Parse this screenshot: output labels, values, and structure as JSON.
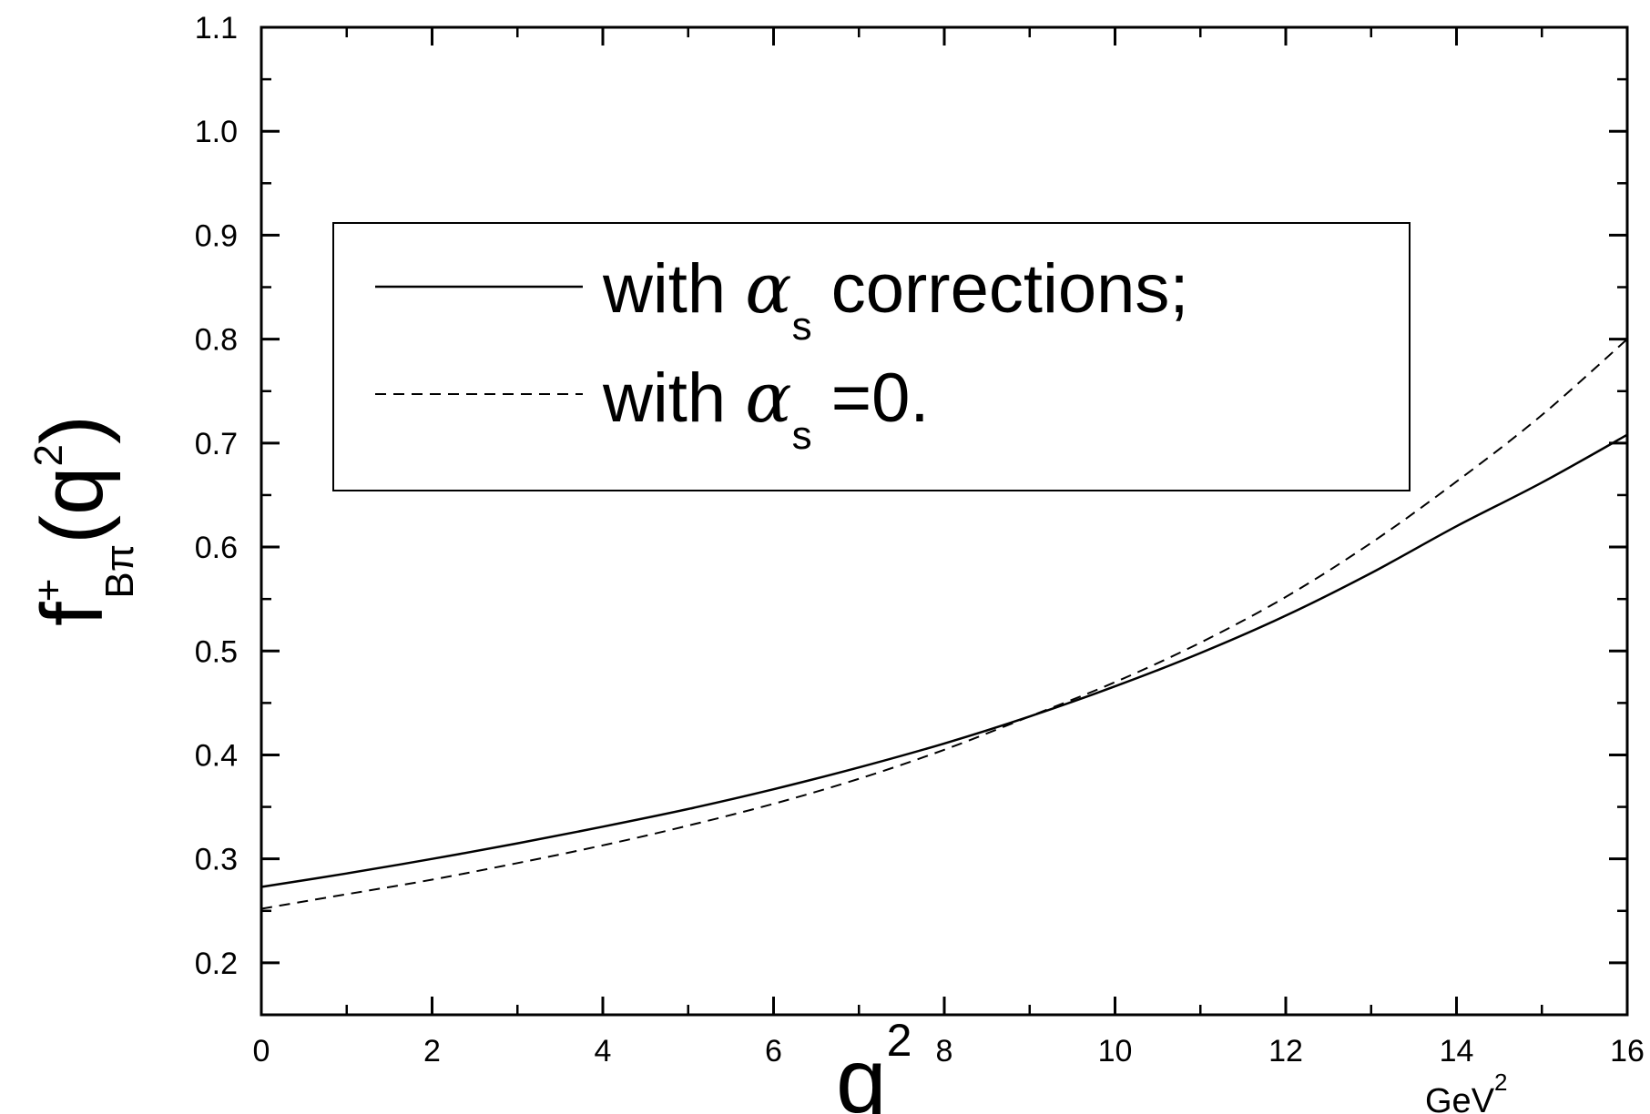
{
  "chart_data": {
    "type": "line",
    "title": "",
    "xlabel": "q",
    "xlabel_sup": "2",
    "x_unit": "GeV",
    "x_unit_sup": "2",
    "ylabel": "f",
    "ylabel_sup": "+",
    "ylabel_sub": "Bπ",
    "ylabel_arg": "(q",
    "ylabel_arg_sup": "2",
    "ylabel_arg_close": ")",
    "xlim": [
      0,
      16
    ],
    "ylim": [
      0.15,
      1.1
    ],
    "x_ticks": [
      0,
      2,
      4,
      6,
      8,
      10,
      12,
      14,
      16
    ],
    "x_tick_labels": [
      "0",
      "2",
      "4",
      "6",
      "8",
      "10",
      "12",
      "14",
      "16"
    ],
    "y_ticks": [
      0.2,
      0.3,
      0.4,
      0.5,
      0.6,
      0.7,
      0.8,
      0.9,
      1.0,
      1.1
    ],
    "y_tick_labels": [
      "0.2",
      "0.3",
      "0.4",
      "0.5",
      "0.6",
      "0.7",
      "0.8",
      "0.9",
      "1.0",
      "1.1"
    ],
    "x_minor_step": 1,
    "y_minor_step": 0.05,
    "grid": false,
    "legend_position": "upper-left inside",
    "series": [
      {
        "name_prefix": "with ",
        "name_greek": "α",
        "name_sub": "s",
        "name_suffix": " corrections;",
        "style": "solid",
        "x": [
          0,
          1,
          2,
          3,
          4,
          5,
          6,
          7,
          8,
          9,
          10,
          11,
          12,
          13,
          14,
          15,
          16
        ],
        "y": [
          0.273,
          0.286,
          0.3,
          0.315,
          0.331,
          0.348,
          0.367,
          0.388,
          0.411,
          0.437,
          0.466,
          0.498,
          0.534,
          0.575,
          0.62,
          0.662,
          0.708
        ]
      },
      {
        "name_prefix": "with ",
        "name_greek": "α",
        "name_sub": "s",
        "name_suffix": " =0.",
        "style": "dashed",
        "x": [
          0,
          1,
          2,
          3,
          4,
          5,
          6,
          7,
          8,
          9,
          10,
          11,
          12,
          13,
          14,
          15,
          16
        ],
        "y": [
          0.252,
          0.266,
          0.28,
          0.296,
          0.313,
          0.332,
          0.353,
          0.377,
          0.405,
          0.437,
          0.47,
          0.508,
          0.552,
          0.604,
          0.663,
          0.727,
          0.8
        ]
      }
    ]
  }
}
